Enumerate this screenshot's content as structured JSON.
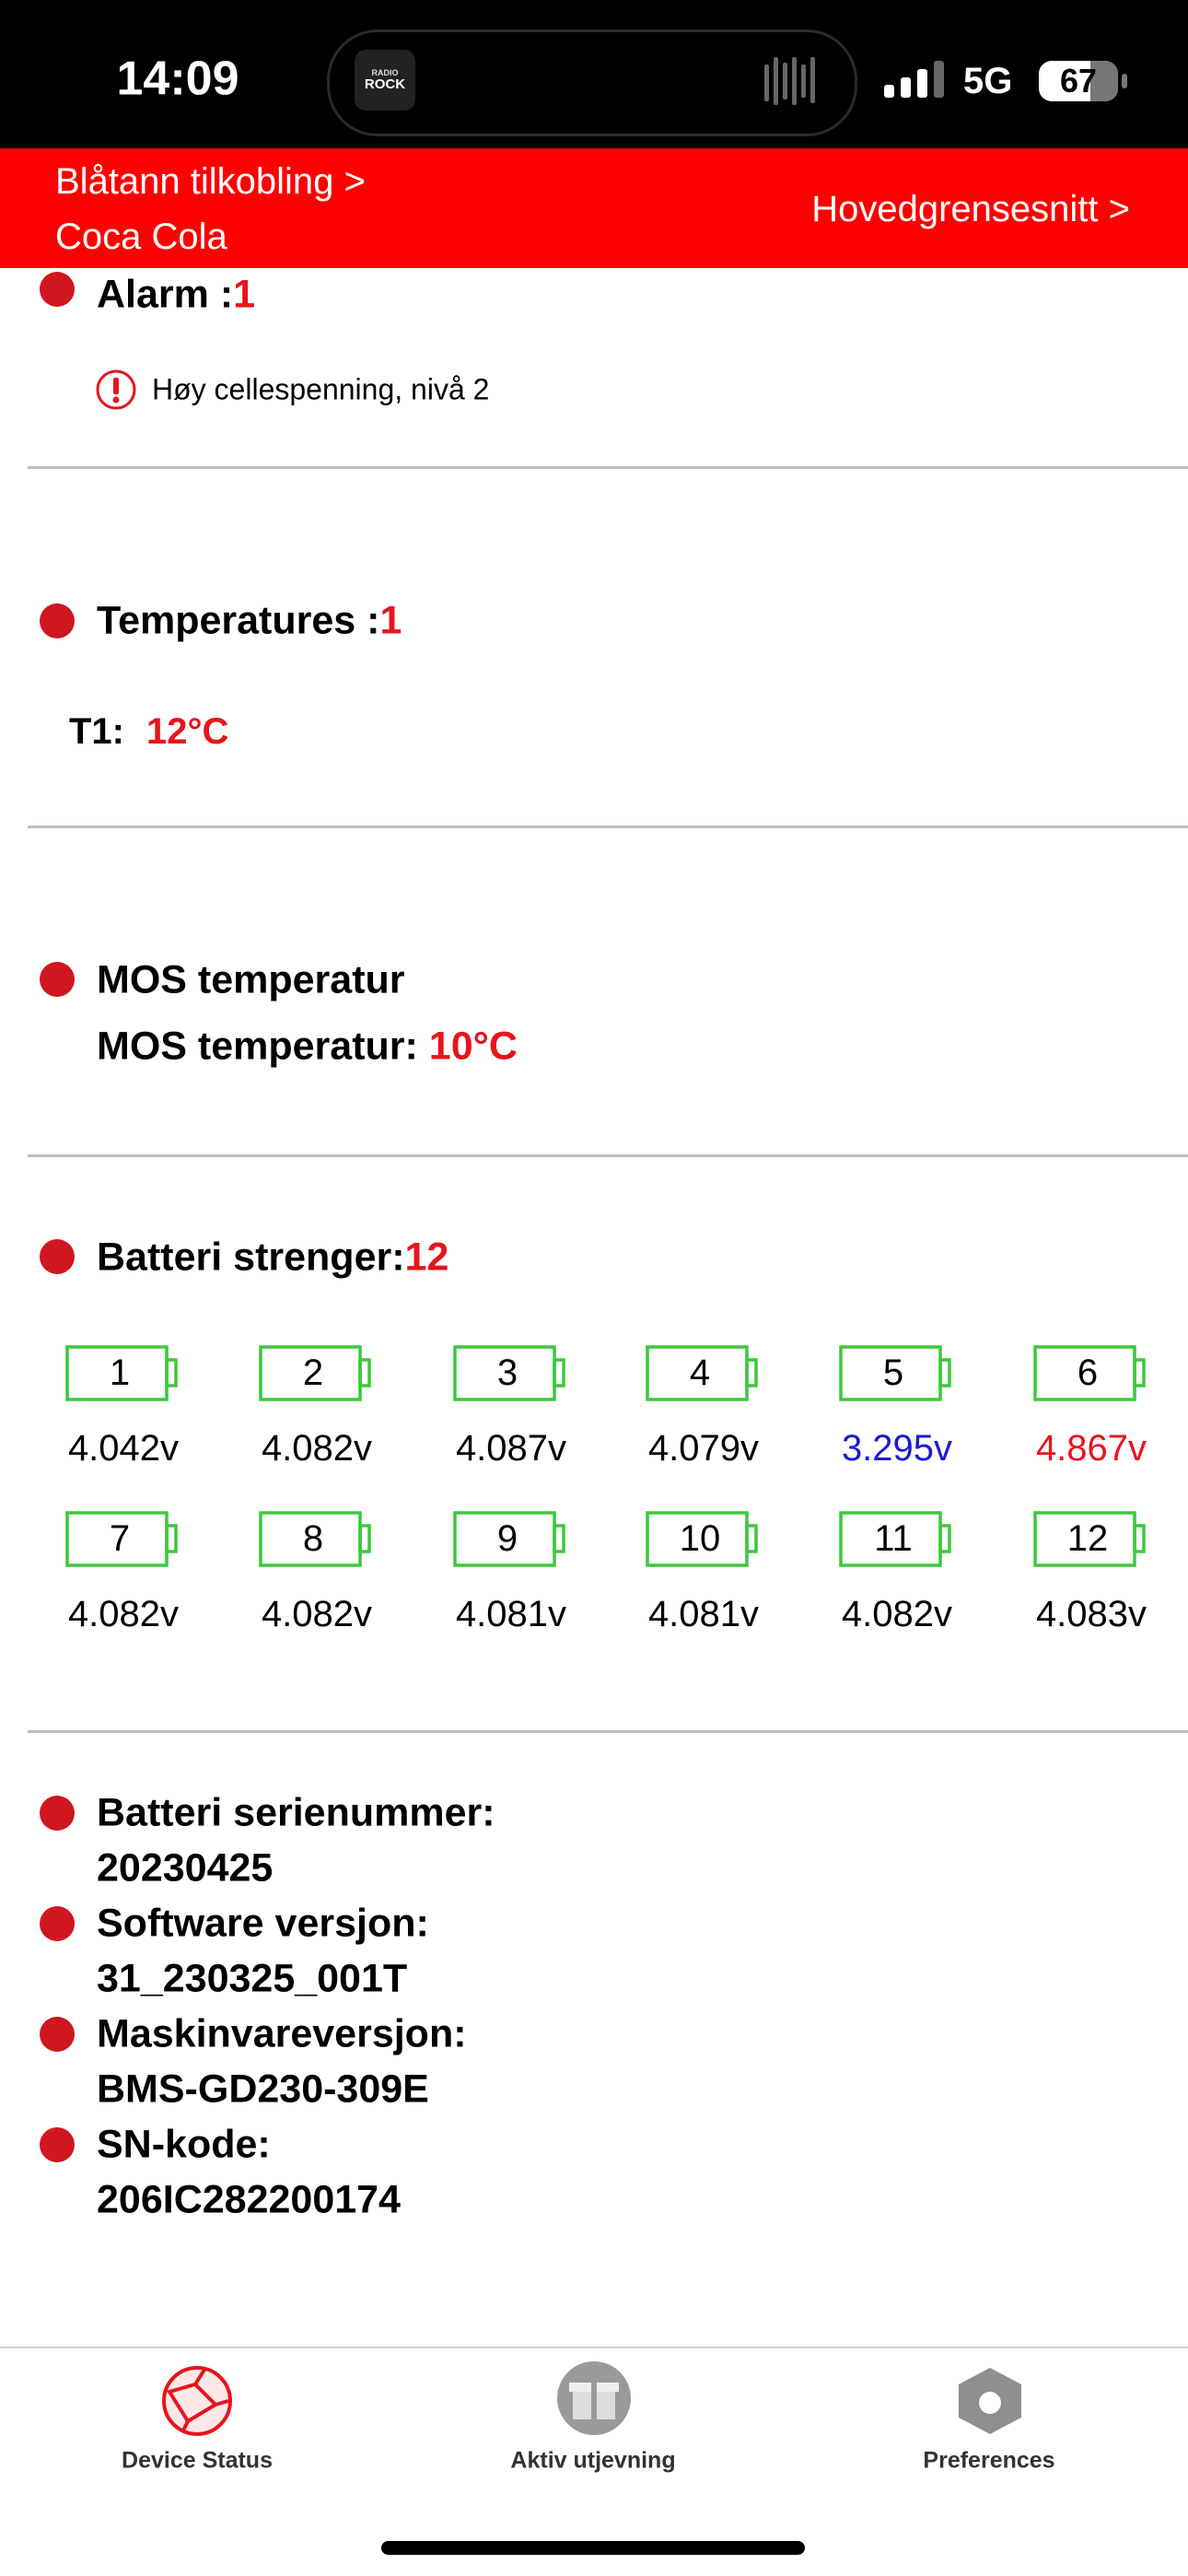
{
  "status_bar": {
    "time": "14:09",
    "island_logo_top": "RADIO",
    "island_logo": "ROCK",
    "network": "5G",
    "battery": "67"
  },
  "header": {
    "breadcrumb_line1": "Blåtann tilkobling >",
    "breadcrumb_line2": "Coca Cola",
    "main_link": "Hovedgrensesnitt >"
  },
  "alarm": {
    "label": "Alarm :",
    "count": "1",
    "messages": [
      "Høy cellespenning, nivå 2"
    ]
  },
  "temperatures": {
    "label": "Temperatures :",
    "count": "1",
    "items": [
      {
        "name": "T1:",
        "value": "12°C"
      }
    ]
  },
  "mos": {
    "title": "MOS temperatur",
    "label": "MOS temperatur:",
    "value": "10°C"
  },
  "cells": {
    "label": "Batteri strenger:",
    "count": "12",
    "items": [
      {
        "id": "1",
        "voltage": "4.042v",
        "color": "#000000"
      },
      {
        "id": "2",
        "voltage": "4.082v",
        "color": "#000000"
      },
      {
        "id": "3",
        "voltage": "4.087v",
        "color": "#000000"
      },
      {
        "id": "4",
        "voltage": "4.079v",
        "color": "#000000"
      },
      {
        "id": "5",
        "voltage": "3.295v",
        "color": "#1a1ad6"
      },
      {
        "id": "6",
        "voltage": "4.867v",
        "color": "#e8141c"
      },
      {
        "id": "7",
        "voltage": "4.082v",
        "color": "#000000"
      },
      {
        "id": "8",
        "voltage": "4.082v",
        "color": "#000000"
      },
      {
        "id": "9",
        "voltage": "4.081v",
        "color": "#000000"
      },
      {
        "id": "10",
        "voltage": "4.081v",
        "color": "#000000"
      },
      {
        "id": "11",
        "voltage": "4.082v",
        "color": "#000000"
      },
      {
        "id": "12",
        "voltage": "4.083v",
        "color": "#000000"
      }
    ]
  },
  "info": [
    {
      "label": "Batteri serienummer:",
      "value": "20230425"
    },
    {
      "label": "Software versjon:",
      "value": "31_230325_001T"
    },
    {
      "label": "Maskinvareversjon:",
      "value": "BMS-GD230-309E"
    },
    {
      "label": "SN-kode:",
      "value": "206IC282200174"
    }
  ],
  "tabs": [
    {
      "label": "Device Status"
    },
    {
      "label": "Aktiv utjevning"
    },
    {
      "label": "Preferences"
    }
  ]
}
